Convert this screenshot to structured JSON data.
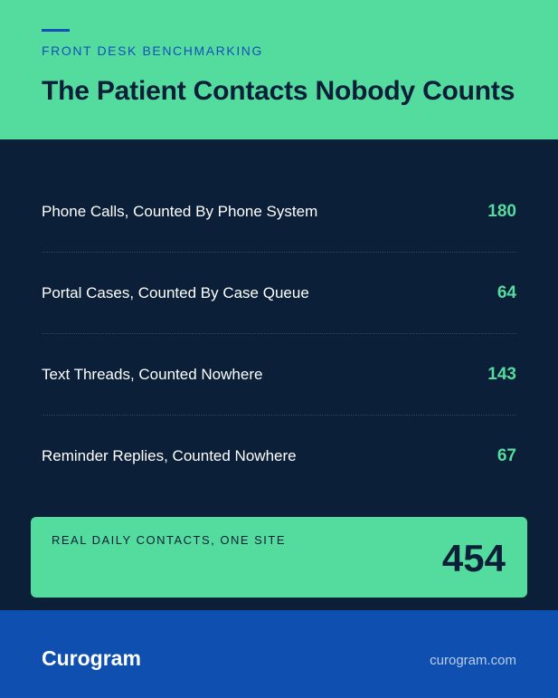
{
  "header": {
    "eyebrow": "FRONT DESK BENCHMARKING",
    "title": "The Patient Contacts Nobody Counts",
    "background_color": "#54dc9f",
    "accent_color": "#1450b8"
  },
  "rows": [
    {
      "label": "Phone Calls, Counted By Phone System",
      "value": "180"
    },
    {
      "label": "Portal Cases, Counted By Case Queue",
      "value": "64"
    },
    {
      "label": "Text Threads, Counted Nowhere",
      "value": "143"
    },
    {
      "label": "Reminder Replies, Counted Nowhere",
      "value": "67"
    }
  ],
  "total": {
    "label": "REAL DAILY CONTACTS, ONE SITE",
    "value": "454"
  },
  "footer": {
    "brand": "Curogram",
    "site": "curogram.com",
    "background_color": "#0e4fb0"
  }
}
